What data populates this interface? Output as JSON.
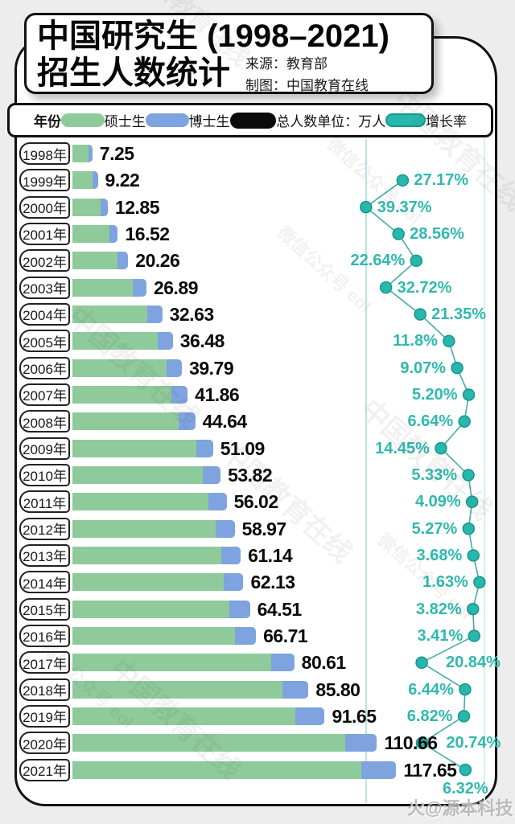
{
  "header": {
    "title_line1": "中国研究生 (1998–2021)",
    "title_line2": "招生人数统计",
    "source_label": "来源：教育部",
    "credit_label": "制图：中国教育在线"
  },
  "legend": {
    "year_label": "年份",
    "items": [
      {
        "label": "硕士生",
        "color": "#8fcb9a"
      },
      {
        "label": "博士生",
        "color": "#7ea3de"
      },
      {
        "label": "总人数",
        "color": "#0b0b0b"
      }
    ],
    "unit_label": "单位：万人",
    "growth_item": {
      "label": "增长率",
      "color": "#28b7ac"
    }
  },
  "watermark_texts": [
    "中国教育在线",
    "微信公众号 eol"
  ],
  "footer_watermark": "火@源本科技",
  "chart_data": {
    "type": "bar",
    "orientation": "horizontal",
    "title": "中国研究生 (1998–2021) 招生人数统计",
    "unit": "万人",
    "legend_position": "top",
    "grid": "two vertical teal gridlines marking growth-rate 40% (left) and 0% (right)",
    "categories": [
      "1998年",
      "1999年",
      "2000年",
      "2001年",
      "2002年",
      "2003年",
      "2004年",
      "2005年",
      "2006年",
      "2007年",
      "2008年",
      "2009年",
      "2010年",
      "2011年",
      "2012年",
      "2013年",
      "2014年",
      "2015年",
      "2016年",
      "2017年",
      "2018年",
      "2019年",
      "2020年",
      "2021年"
    ],
    "totals": [
      7.25,
      9.22,
      12.85,
      16.52,
      20.26,
      26.89,
      32.63,
      36.48,
      39.79,
      41.86,
      44.64,
      51.09,
      53.82,
      56.02,
      58.97,
      61.14,
      62.13,
      64.51,
      66.71,
      80.61,
      85.8,
      91.65,
      110.66,
      117.65
    ],
    "total_labels": [
      "7.25",
      "9.22",
      "12.85",
      "16.52",
      "20.26",
      "26.89",
      "32.63",
      "36.48",
      "39.79",
      "41.86",
      "44.64",
      "51.09",
      "53.82",
      "56.02",
      "58.97",
      "61.14",
      "62.13",
      "64.51",
      "66.71",
      "80.61",
      "85.80",
      "91.65",
      "110.66",
      "117.65"
    ],
    "series": [
      {
        "name": "硕士生 (segment widths estimated from pixels)",
        "values": [
          5.75,
          7.22,
          10.3,
          13.32,
          16.43,
          22.02,
          27.3,
          30.98,
          34.19,
          36.06,
          38.64,
          44.9,
          47.44,
          49.46,
          52.13,
          54.09,
          54.87,
          57.07,
          58.98,
          72.22,
          76.25,
          81.13,
          99.06,
          105.07
        ]
      },
      {
        "name": "博士生 (segment widths estimated from pixels)",
        "values": [
          1.5,
          2.0,
          2.55,
          3.2,
          3.83,
          4.87,
          5.33,
          5.5,
          5.6,
          5.8,
          6.0,
          6.19,
          6.38,
          6.56,
          6.84,
          7.05,
          7.26,
          7.44,
          7.73,
          8.39,
          9.55,
          10.52,
          11.6,
          12.58
        ]
      }
    ],
    "growth_rate": {
      "name": "增长率",
      "values": [
        null,
        27.17,
        39.37,
        28.56,
        22.64,
        32.72,
        21.35,
        11.8,
        9.07,
        5.2,
        6.64,
        14.45,
        5.33,
        4.09,
        5.27,
        3.68,
        1.63,
        3.82,
        3.41,
        20.84,
        6.44,
        6.82,
        20.74,
        6.32
      ],
      "labels": [
        "",
        "27.17%",
        "39.37%",
        "28.56%",
        "22.64%",
        "32.72%",
        "21.35%",
        "11.8%",
        "9.07%",
        "5.20%",
        "6.64%",
        "14.45%",
        "5.33%",
        "4.09%",
        "5.27%",
        "3.68%",
        "1.63%",
        "3.82%",
        "3.41%",
        "20.84%",
        "6.44%",
        "6.82%",
        "20.74%",
        "6.32%"
      ],
      "label_side": [
        "none",
        "right",
        "right",
        "right",
        "left",
        "right",
        "right",
        "left",
        "left",
        "left",
        "left",
        "left",
        "left",
        "left",
        "left",
        "left",
        "left",
        "left",
        "left",
        "right",
        "left",
        "left",
        "right",
        "below"
      ],
      "label_dx": {
        "19": 30,
        "22": 30
      },
      "axis": {
        "min": 0,
        "max": 40,
        "direction": "right-to-left",
        "gridlines_pct": [
          40,
          0
        ]
      }
    }
  }
}
